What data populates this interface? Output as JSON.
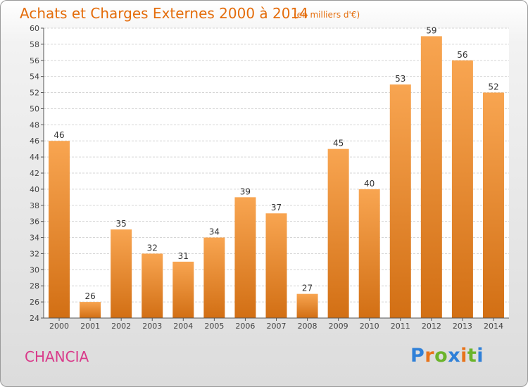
{
  "title": "Achats et Charges Externes 2000 à 2014",
  "subtitle": "(en milliers d'€)",
  "place_name": "CHANCIA",
  "logo": {
    "letters": [
      "P",
      "r",
      "o",
      "x",
      "i",
      "t",
      "i"
    ],
    "colors": [
      "#2f80d8",
      "#e8731a",
      "#6bb42b",
      "#2f80d8",
      "#e8731a",
      "#6bb42b",
      "#2f80d8"
    ]
  },
  "colors": {
    "bar_light": "#f8a551",
    "bar_dark": "#d26f14",
    "title": "#e46c0a",
    "place": "#d93a8a"
  },
  "chart_data": {
    "type": "bar",
    "title": "Achats et Charges Externes 2000 à 2014",
    "subtitle": "(en milliers d'€)",
    "categories": [
      "2000",
      "2001",
      "2002",
      "2003",
      "2004",
      "2005",
      "2006",
      "2007",
      "2008",
      "2009",
      "2010",
      "2011",
      "2012",
      "2013",
      "2014"
    ],
    "values": [
      46,
      26,
      35,
      32,
      31,
      34,
      39,
      37,
      27,
      45,
      40,
      53,
      59,
      56,
      52
    ],
    "ylim": [
      24,
      60
    ],
    "yticks": [
      "24",
      "26",
      "28",
      "30",
      "32",
      "34",
      "36",
      "38",
      "40",
      "42",
      "44",
      "46",
      "48",
      "50",
      "52",
      "54",
      "56",
      "58",
      "60"
    ],
    "grid": true,
    "legend": "none"
  }
}
